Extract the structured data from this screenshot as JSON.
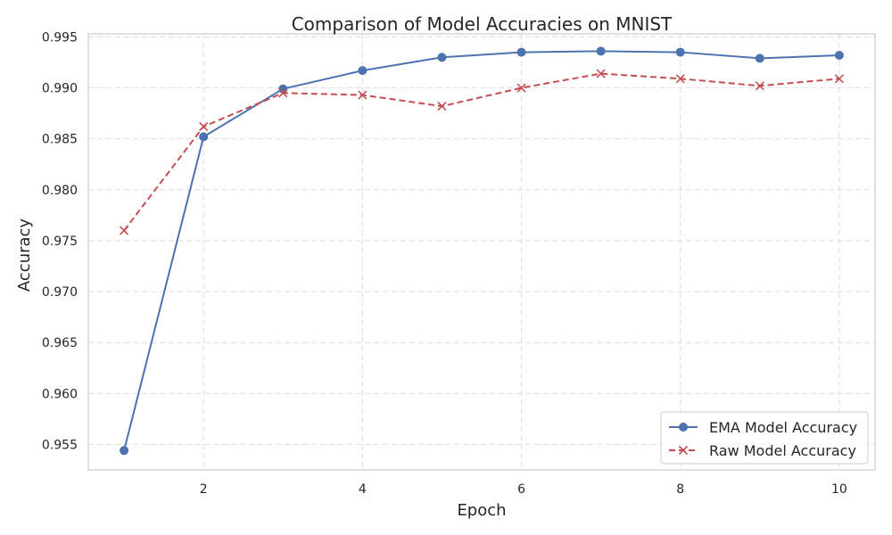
{
  "chart_data": {
    "type": "line",
    "title": "Comparison of Model Accuracies on MNIST",
    "xlabel": "Epoch",
    "ylabel": "Accuracy",
    "x": [
      1,
      2,
      3,
      4,
      5,
      6,
      7,
      8,
      9,
      10
    ],
    "xlim": [
      0.55,
      10.45
    ],
    "ylim": [
      0.9525,
      0.9953
    ],
    "xticks": [
      2,
      4,
      6,
      8,
      10
    ],
    "xtick_labels": [
      "2",
      "4",
      "6",
      "8",
      "10"
    ],
    "yticks": [
      0.955,
      0.96,
      0.965,
      0.97,
      0.975,
      0.98,
      0.985,
      0.99,
      0.995
    ],
    "ytick_labels": [
      "0.955",
      "0.960",
      "0.965",
      "0.970",
      "0.975",
      "0.980",
      "0.985",
      "0.990",
      "0.995"
    ],
    "grid": true,
    "legend_position": "bottom-right",
    "series": [
      {
        "name": "EMA Model Accuracy",
        "values": [
          0.9544,
          0.9852,
          0.9899,
          0.9917,
          0.993,
          0.9935,
          0.9936,
          0.9935,
          0.9929,
          0.9932
        ],
        "color": "#4c72b0",
        "line_style": "solid",
        "marker": "circle"
      },
      {
        "name": "Raw Model Accuracy",
        "values": [
          0.976,
          0.9862,
          0.9895,
          0.9893,
          0.9882,
          0.99,
          0.9914,
          0.9909,
          0.9902,
          0.9909
        ],
        "color": "#c44e52",
        "line_style": "dashed",
        "marker": "x"
      }
    ]
  }
}
